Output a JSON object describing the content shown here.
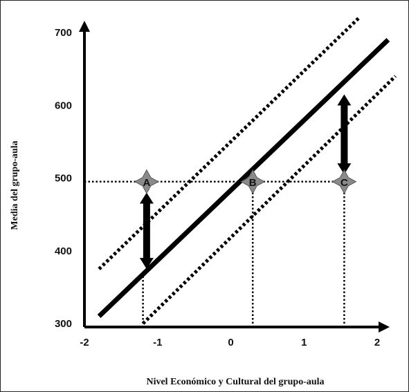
{
  "chart_data": {
    "type": "line",
    "title": "",
    "xlabel": "Nivel Económico y Cultural del grupo-aula",
    "ylabel": "Media del grupo-aula",
    "xlim": [
      -2,
      2
    ],
    "ylim": [
      300,
      700
    ],
    "x_ticks": [
      "-2",
      "-1",
      "0",
      "1",
      "2"
    ],
    "y_ticks": [
      "300",
      "400",
      "500",
      "600",
      "700"
    ],
    "grid": false,
    "legend": "none",
    "series": [
      {
        "style": "solid",
        "x": [
          -1.8,
          2.15
        ],
        "y": [
          310,
          690
        ]
      },
      {
        "style": "dotted",
        "x": [
          -1.8,
          1.75
        ],
        "y": [
          375,
          720
        ]
      },
      {
        "style": "dotted",
        "x": [
          -1.2,
          2.25
        ],
        "y": [
          300,
          640
        ]
      }
    ],
    "reference_lines": [
      {
        "style": "dotted",
        "x": [
          -2,
          1.6
        ],
        "y": [
          495,
          495
        ]
      },
      {
        "style": "dotted",
        "x": [
          -1.2,
          -1.2
        ],
        "y": [
          300,
          365
        ]
      },
      {
        "style": "dotted",
        "x": [
          0.3,
          0.3
        ],
        "y": [
          300,
          495
        ]
      },
      {
        "style": "dotted",
        "x": [
          1.55,
          1.55
        ],
        "y": [
          300,
          495
        ]
      }
    ],
    "points": [
      {
        "label": "A",
        "x": -1.15,
        "y": 495
      },
      {
        "label": "B",
        "x": 0.3,
        "y": 495
      },
      {
        "label": "C",
        "x": 1.55,
        "y": 495
      }
    ],
    "arrows": [
      {
        "x": -1.15,
        "y_from": 375,
        "y_to": 480
      },
      {
        "x": 1.55,
        "y_from": 505,
        "y_to": 615
      }
    ],
    "colors": {
      "marker": "#8a8a8a",
      "line": "#000000"
    }
  }
}
